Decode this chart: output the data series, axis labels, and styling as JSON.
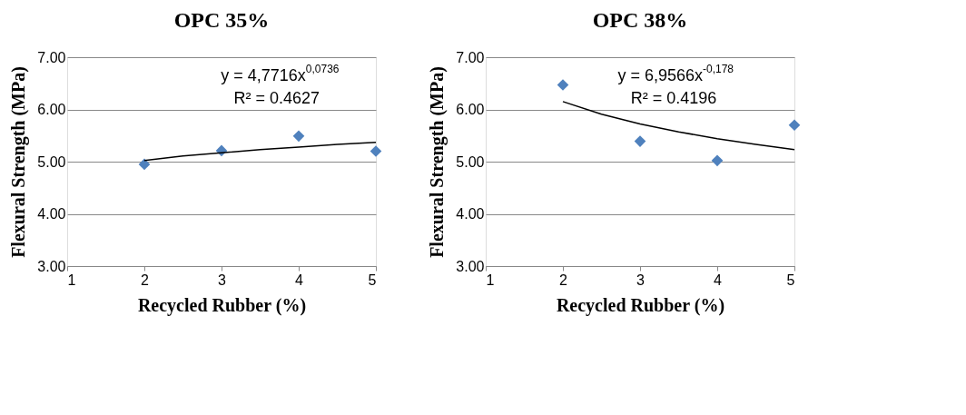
{
  "chart_data": [
    {
      "type": "scatter",
      "title": "OPC 35%",
      "xlabel": "Recycled Rubber (%)",
      "ylabel": "Flexural Strength (MPa)",
      "xlim": [
        1,
        5
      ],
      "xticks": [
        1,
        2,
        3,
        4,
        5
      ],
      "ylim": [
        3,
        7
      ],
      "yticks": [
        {
          "value": 3,
          "label": "3.00"
        },
        {
          "value": 4,
          "label": "4.00"
        },
        {
          "value": 5,
          "label": "5.00"
        },
        {
          "value": 6,
          "label": "6.00"
        },
        {
          "value": 7,
          "label": "7.00"
        }
      ],
      "grid": "y",
      "marker": "diamond",
      "series": [
        {
          "color": "#4f81bd",
          "x": [
            2,
            3,
            4,
            5
          ],
          "values": [
            4.95,
            5.21,
            5.49,
            5.2
          ]
        },
        {
          "type": "line",
          "marker": "none",
          "color": "#000000",
          "line_style": "solid",
          "x": [
            2,
            2.5,
            3,
            3.5,
            4,
            4.5,
            5
          ],
          "values": [
            5.02,
            5.11,
            5.17,
            5.23,
            5.28,
            5.33,
            5.37
          ]
        }
      ],
      "annotations": [
        "y = 4,7716x$^{0,0736}$",
        "R² = 0.4627"
      ]
    },
    {
      "type": "scatter",
      "title": "OPC 38%",
      "xlabel": "Recycled Rubber (%)",
      "ylabel": "Flexural Strength (MPa)",
      "xlim": [
        1,
        5
      ],
      "xticks": [
        1,
        2,
        3,
        4,
        5
      ],
      "ylim": [
        3,
        7
      ],
      "yticks": [
        {
          "value": 3,
          "label": "3.00"
        },
        {
          "value": 4,
          "label": "4.00"
        },
        {
          "value": 5,
          "label": "5.00"
        },
        {
          "value": 6,
          "label": "6.00"
        },
        {
          "value": 7,
          "label": "7.00"
        }
      ],
      "grid": "y",
      "marker": "diamond",
      "series": [
        {
          "color": "#4f81bd",
          "x": [
            2,
            3,
            4,
            5
          ],
          "values": [
            6.47,
            5.39,
            5.02,
            5.7
          ]
        },
        {
          "type": "line",
          "marker": "none",
          "color": "#000000",
          "line_style": "solid",
          "x": [
            2,
            2.5,
            3,
            3.5,
            4,
            4.5,
            5
          ],
          "values": [
            6.15,
            5.91,
            5.72,
            5.57,
            5.44,
            5.33,
            5.23
          ]
        }
      ],
      "annotations": [
        "y = 6,9566x$^{-0,178}$",
        "R² = 0.4196"
      ]
    }
  ]
}
